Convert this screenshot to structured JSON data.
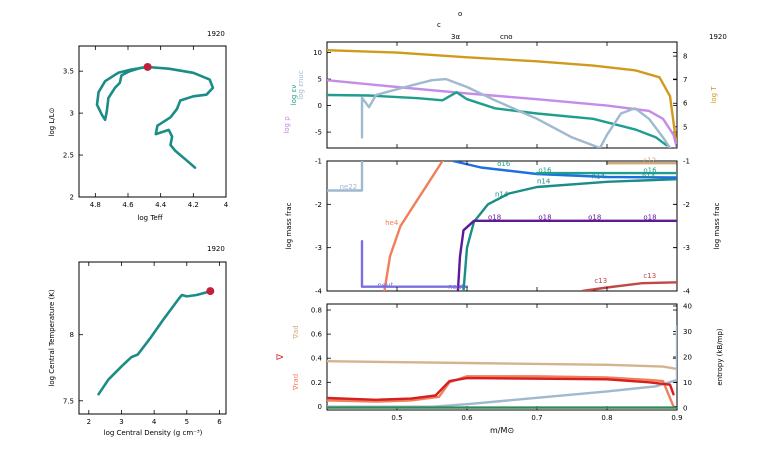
{
  "header": {
    "model_number": "1920",
    "c_label": "c",
    "o_label": "o",
    "third_label": "3α",
    "cno_label": "cno"
  },
  "chart_data": [
    {
      "id": "hr",
      "type": "line",
      "title": "1920",
      "xlabel": "log Teff",
      "ylabel": "log L/L⊙",
      "xlim": [
        4.9,
        4.0
      ],
      "ylim": [
        2.0,
        3.8
      ],
      "xticks": [
        "4.8",
        "4.6",
        "4.4",
        "4.2",
        "4"
      ],
      "yticks": [
        "2",
        "2.5",
        "3",
        "3.5"
      ],
      "line_color": "#1b8c86",
      "marker_color": "#c0203a",
      "track": [
        [
          4.19,
          2.35
        ],
        [
          4.25,
          2.45
        ],
        [
          4.31,
          2.55
        ],
        [
          4.34,
          2.62
        ],
        [
          4.33,
          2.72
        ],
        [
          4.35,
          2.8
        ],
        [
          4.43,
          2.75
        ],
        [
          4.42,
          2.85
        ],
        [
          4.34,
          2.95
        ],
        [
          4.3,
          3.05
        ],
        [
          4.28,
          3.15
        ],
        [
          4.2,
          3.2
        ],
        [
          4.12,
          3.22
        ],
        [
          4.08,
          3.3
        ],
        [
          4.1,
          3.4
        ],
        [
          4.2,
          3.48
        ],
        [
          4.35,
          3.53
        ],
        [
          4.48,
          3.55
        ],
        [
          4.58,
          3.52
        ],
        [
          4.66,
          3.48
        ],
        [
          4.74,
          3.38
        ],
        [
          4.78,
          3.25
        ],
        [
          4.79,
          3.1
        ],
        [
          4.76,
          2.98
        ],
        [
          4.74,
          2.92
        ],
        [
          4.73,
          3.02
        ],
        [
          4.72,
          3.18
        ],
        [
          4.68,
          3.3
        ],
        [
          4.65,
          3.36
        ],
        [
          4.64,
          3.45
        ],
        [
          4.59,
          3.5
        ],
        [
          4.52,
          3.54
        ],
        [
          4.48,
          3.55
        ]
      ],
      "marker": [
        4.48,
        3.55
      ]
    },
    {
      "id": "center",
      "type": "line",
      "title": "1920",
      "xlabel": "log Central Density (g cm⁻³)",
      "ylabel": "log Central Temperature (K)",
      "xlim": [
        1.7,
        6.2
      ],
      "ylim": [
        7.4,
        8.55
      ],
      "xticks": [
        "2",
        "3",
        "4",
        "5",
        "6"
      ],
      "yticks": [
        "7.5",
        "8"
      ],
      "line_color": "#1b8c86",
      "marker_color": "#c0203a",
      "track": [
        [
          2.3,
          7.55
        ],
        [
          2.6,
          7.66
        ],
        [
          3.0,
          7.76
        ],
        [
          3.3,
          7.83
        ],
        [
          3.5,
          7.85
        ],
        [
          3.9,
          7.98
        ],
        [
          4.3,
          8.12
        ],
        [
          4.75,
          8.27
        ],
        [
          4.85,
          8.3
        ],
        [
          5.0,
          8.29
        ],
        [
          5.3,
          8.3
        ],
        [
          5.6,
          8.32
        ],
        [
          5.72,
          8.33
        ]
      ],
      "marker": [
        5.72,
        8.33
      ]
    },
    {
      "id": "top",
      "type": "line",
      "title": "1920",
      "xlim": [
        0.4,
        0.9
      ],
      "ylim": [
        -8,
        12
      ],
      "y2lim": [
        4.1,
        8.6
      ],
      "yticks": [
        "10",
        "5",
        "0",
        "-5"
      ],
      "y2ticks": [
        "8",
        "7",
        "6",
        "5"
      ],
      "ylabels": [
        {
          "text": "log ρ",
          "color": "#c58be8"
        },
        {
          "text": "log εν",
          "color": "#1f9e8e"
        },
        {
          "text": "log εnuc",
          "color": "#9fb9cf"
        }
      ],
      "y2label": {
        "text": "log T",
        "color": "#d09a1e"
      },
      "series": [
        {
          "name": "log T",
          "color": "#d09a1e",
          "axis": "y2",
          "points": [
            [
              0.4,
              8.25
            ],
            [
              0.5,
              8.15
            ],
            [
              0.6,
              7.95
            ],
            [
              0.7,
              7.78
            ],
            [
              0.78,
              7.6
            ],
            [
              0.84,
              7.4
            ],
            [
              0.875,
              7.1
            ],
            [
              0.89,
              6.3
            ],
            [
              0.9,
              4.1
            ]
          ]
        },
        {
          "name": "log ρ",
          "color": "#c58be8",
          "axis": "y",
          "points": [
            [
              0.4,
              4.8
            ],
            [
              0.5,
              3.5
            ],
            [
              0.6,
              2.3
            ],
            [
              0.7,
              1.2
            ],
            [
              0.8,
              0.0
            ],
            [
              0.86,
              -1.0
            ],
            [
              0.88,
              -2.5
            ],
            [
              0.895,
              -5.5
            ],
            [
              0.9,
              -8
            ]
          ]
        },
        {
          "name": "log εν",
          "color": "#1f9e8e",
          "axis": "y",
          "points": [
            [
              0.4,
              2.0
            ],
            [
              0.46,
              1.9
            ],
            [
              0.53,
              1.4
            ],
            [
              0.565,
              1.0
            ],
            [
              0.585,
              2.5
            ],
            [
              0.6,
              1.2
            ],
            [
              0.64,
              -0.5
            ],
            [
              0.7,
              -1.5
            ],
            [
              0.78,
              -2.5
            ],
            [
              0.84,
              -4.5
            ],
            [
              0.87,
              -6.0
            ],
            [
              0.885,
              -7.5
            ]
          ]
        },
        {
          "name": "log εnuc",
          "color": "#9fb9cf",
          "axis": "y",
          "points": [
            [
              0.45,
              -6.0
            ],
            [
              0.45,
              1.5
            ],
            [
              0.46,
              -0.3
            ],
            [
              0.47,
              2.0
            ],
            [
              0.52,
              3.8
            ],
            [
              0.55,
              4.8
            ],
            [
              0.57,
              5.0
            ],
            [
              0.6,
              3.5
            ],
            [
              0.64,
              1.0
            ],
            [
              0.7,
              -2.5
            ],
            [
              0.75,
              -6.0
            ],
            [
              0.79,
              -8.0
            ],
            [
              0.8,
              -5.5
            ],
            [
              0.82,
              -1.5
            ],
            [
              0.84,
              -0.5
            ],
            [
              0.86,
              -2.5
            ],
            [
              0.88,
              -6.0
            ],
            [
              0.89,
              -8
            ]
          ]
        }
      ]
    },
    {
      "id": "middle",
      "type": "line",
      "xlim": [
        0.4,
        0.9
      ],
      "ylim": [
        -4,
        -1
      ],
      "yticks": [
        "-1",
        "-2",
        "-3",
        "-4"
      ],
      "y2ticks": [
        "-1",
        "-2",
        "-3",
        "-4"
      ],
      "ylabel": "log mass frac",
      "y2label": "log mass frac",
      "series": [
        {
          "name": "ne22",
          "color": "#9fb9cf",
          "points": [
            [
              0.4,
              -1.68
            ],
            [
              0.45,
              -1.68
            ],
            [
              0.45,
              -1.0
            ]
          ]
        },
        {
          "name": "he4",
          "color": "#f07f5a",
          "points": [
            [
              0.482,
              -4.0
            ],
            [
              0.49,
              -3.2
            ],
            [
              0.505,
              -2.5
            ],
            [
              0.525,
              -2.0
            ],
            [
              0.545,
              -1.5
            ],
            [
              0.565,
              -1.0
            ]
          ]
        },
        {
          "name": "neut",
          "color": "#7b6fe0",
          "points": [
            [
              0.45,
              -2.85
            ],
            [
              0.45,
              -3.9
            ],
            [
              0.6,
              -3.9
            ]
          ]
        },
        {
          "name": "n14",
          "color": "#1b8c86",
          "points": [
            [
              0.595,
              -4.0
            ],
            [
              0.6,
              -3.0
            ],
            [
              0.61,
              -2.4
            ],
            [
              0.63,
              -2.0
            ],
            [
              0.66,
              -1.75
            ],
            [
              0.7,
              -1.6
            ],
            [
              0.8,
              -1.48
            ],
            [
              0.9,
              -1.42
            ]
          ]
        },
        {
          "name": "o18",
          "color": "#5c1a96",
          "points": [
            [
              0.587,
              -4.0
            ],
            [
              0.59,
              -3.2
            ],
            [
              0.595,
              -2.6
            ],
            [
              0.61,
              -2.38
            ],
            [
              0.9,
              -2.38
            ]
          ]
        },
        {
          "name": "n15",
          "color": "#1e6fe0",
          "points": [
            [
              0.58,
              -1.0
            ],
            [
              0.62,
              -1.15
            ],
            [
              0.7,
              -1.3
            ],
            [
              0.8,
              -1.37
            ],
            [
              0.9,
              -1.38
            ]
          ]
        },
        {
          "name": "o16",
          "color": "#1f9e8e",
          "points": [
            [
              0.7,
              -1.28
            ],
            [
              0.8,
              -1.28
            ],
            [
              0.9,
              -1.28
            ]
          ]
        },
        {
          "name": "c12",
          "color": "#cfa87a",
          "points": [
            [
              0.8,
              -1.05
            ],
            [
              0.9,
              -1.05
            ]
          ]
        },
        {
          "name": "c13",
          "color": "#c04848",
          "points": [
            [
              0.765,
              -4.0
            ],
            [
              0.8,
              -3.92
            ],
            [
              0.85,
              -3.82
            ],
            [
              0.9,
              -3.8
            ]
          ]
        }
      ],
      "labels": [
        {
          "text": "ne22",
          "color": "#9fb9cf",
          "x": 0.418,
          "y": -1.65
        },
        {
          "text": "he4",
          "color": "#f07f5a",
          "x": 0.483,
          "y": -2.48
        },
        {
          "text": "neut",
          "color": "#7b6fe0",
          "x": 0.472,
          "y": -3.92
        },
        {
          "text": "neut",
          "color": "#7b6fe0",
          "x": 0.573,
          "y": -3.95
        },
        {
          "text": "n14",
          "color": "#1b8c86",
          "x": 0.64,
          "y": -1.82
        },
        {
          "text": "n14",
          "color": "#1b8c86",
          "x": 0.7,
          "y": -1.52
        },
        {
          "text": "n14",
          "color": "#1b8c86",
          "x": 0.778,
          "y": -1.4
        },
        {
          "text": "n14",
          "color": "#1b8c86",
          "x": 0.85,
          "y": -1.4
        },
        {
          "text": "o16",
          "color": "#1f9e8e",
          "x": 0.643,
          "y": -1.12
        },
        {
          "text": "o16",
          "color": "#1f9e8e",
          "x": 0.702,
          "y": -1.26
        },
        {
          "text": "o16",
          "color": "#1f9e8e",
          "x": 0.852,
          "y": -1.26
        },
        {
          "text": "o18",
          "color": "#5c1a96",
          "x": 0.63,
          "y": -2.35
        },
        {
          "text": "o18",
          "color": "#5c1a96",
          "x": 0.702,
          "y": -2.35
        },
        {
          "text": "o18",
          "color": "#5c1a96",
          "x": 0.773,
          "y": -2.35
        },
        {
          "text": "o18",
          "color": "#5c1a96",
          "x": 0.852,
          "y": -2.35
        },
        {
          "text": "c12",
          "color": "#cfa87a",
          "x": 0.852,
          "y": -1.03
        },
        {
          "text": "c13",
          "color": "#c04848",
          "x": 0.782,
          "y": -3.82
        },
        {
          "text": "c13",
          "color": "#c04848",
          "x": 0.852,
          "y": -3.7
        }
      ]
    },
    {
      "id": "bottom",
      "type": "line",
      "xlim": [
        0.4,
        0.9
      ],
      "ylim": [
        -0.03,
        0.85
      ],
      "y2lim": [
        0,
        40
      ],
      "xlabel": "m/M⊙",
      "xticks": [
        "0.5",
        "0.6",
        "0.7",
        "0.8",
        "0.9"
      ],
      "yticks": [
        "0.8",
        "0.6",
        "0.4",
        "0.2",
        "0"
      ],
      "y2ticks": [
        "40",
        "30",
        "20",
        "10",
        "0"
      ],
      "ylabels": [
        {
          "text": "∇",
          "color": "#d42020"
        },
        {
          "text": "∇ad",
          "color": "#cfa87a"
        },
        {
          "text": "∇rad",
          "color": "#f07f5a"
        }
      ],
      "y2label": "entropy (kB/mp)",
      "series": [
        {
          "name": "∇ad",
          "color": "#d4b48e",
          "axis": "y",
          "points": [
            [
              0.4,
              0.375
            ],
            [
              0.6,
              0.36
            ],
            [
              0.8,
              0.345
            ],
            [
              0.88,
              0.33
            ],
            [
              0.9,
              0.31
            ]
          ]
        },
        {
          "name": "∇rad",
          "color": "#f07f5a",
          "axis": "y",
          "points": [
            [
              0.4,
              0.05
            ],
            [
              0.47,
              0.04
            ],
            [
              0.52,
              0.05
            ],
            [
              0.56,
              0.08
            ],
            [
              0.575,
              0.2
            ],
            [
              0.6,
              0.25
            ],
            [
              0.7,
              0.25
            ],
            [
              0.8,
              0.24
            ],
            [
              0.86,
              0.22
            ],
            [
              0.88,
              0.21
            ],
            [
              0.895,
              0.0
            ]
          ]
        },
        {
          "name": "entropy",
          "color": "#9fb9cf",
          "axis": "y2",
          "points": [
            [
              0.4,
              0.5
            ],
            [
              0.55,
              0.5
            ],
            [
              0.6,
              1.5
            ],
            [
              0.7,
              4.0
            ],
            [
              0.8,
              6.5
            ],
            [
              0.87,
              8.5
            ],
            [
              0.9,
              11.0
            ],
            [
              0.9,
              32.0
            ]
          ]
        },
        {
          "name": "∇",
          "color": "#d42020",
          "axis": "y",
          "points": [
            [
              0.4,
              0.07
            ],
            [
              0.47,
              0.055
            ],
            [
              0.52,
              0.065
            ],
            [
              0.555,
              0.09
            ],
            [
              0.575,
              0.21
            ],
            [
              0.6,
              0.235
            ],
            [
              0.7,
              0.23
            ],
            [
              0.8,
              0.225
            ],
            [
              0.86,
              0.2
            ],
            [
              0.89,
              0.18
            ],
            [
              0.895,
              0.1
            ]
          ]
        },
        {
          "name": "",
          "color": "#2e8b57",
          "axis": "y",
          "points": [
            [
              0.4,
              -0.01
            ],
            [
              0.9,
              -0.01
            ]
          ]
        }
      ]
    }
  ]
}
